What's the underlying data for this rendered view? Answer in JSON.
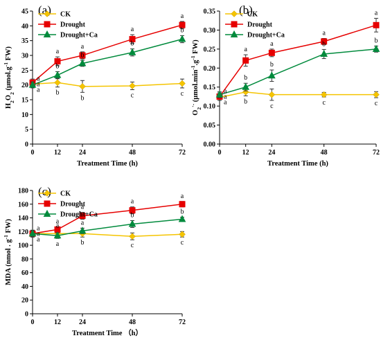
{
  "chart_data": [
    {
      "panel_label": "(a)",
      "type": "line",
      "x": [
        0,
        12,
        24,
        48,
        72
      ],
      "ylim": [
        0,
        45
      ],
      "yticks": [
        0,
        5,
        10,
        15,
        20,
        25,
        30,
        35,
        40,
        45
      ],
      "xlabel": "Treatment Time (h)",
      "ylabel": "H2O2 (μmol.g-1 FW)",
      "ylabel_parts": {
        "pre": "H",
        "sub1": "2",
        "mid": "O",
        "sub2": "2",
        "post": " (μmol.g",
        "sup": "-1",
        "end": " FW)"
      },
      "legend": {
        "position": "top-left"
      },
      "series": [
        {
          "name": "CK",
          "color": "#f5c400",
          "marker": "diamond",
          "values": [
            20.3,
            20.8,
            19.5,
            19.7,
            20.5
          ],
          "errors": [
            1.2,
            1.5,
            2.0,
            1.3,
            1.5
          ],
          "labels": [
            "a",
            "b",
            "b",
            "c",
            "c"
          ]
        },
        {
          "name": "Drought",
          "color": "#e60000",
          "marker": "square",
          "values": [
            20.8,
            28.0,
            30.0,
            35.5,
            40.3
          ],
          "errors": [
            1.2,
            1.5,
            1.2,
            1.5,
            1.2
          ],
          "labels": [
            "a",
            "a",
            "a",
            "a",
            "a"
          ]
        },
        {
          "name": "Drought+Ca",
          "color": "#008a3c",
          "marker": "triangle",
          "values": [
            20.0,
            23.3,
            27.3,
            31.0,
            35.5
          ],
          "errors": [
            1.0,
            1.2,
            1.0,
            1.2,
            1.2
          ],
          "labels": [
            "a",
            "b",
            "b",
            "b",
            "b"
          ]
        }
      ]
    },
    {
      "panel_label": "(b)",
      "type": "line",
      "x": [
        0,
        12,
        24,
        48,
        72
      ],
      "ylim": [
        0,
        0.35
      ],
      "yticks": [
        "0.00",
        "0.05",
        "0.10",
        "0.15",
        "0.20",
        "0.25",
        "0.30",
        "0.35"
      ],
      "xlabel": "Treatment Time (h)",
      "ylabel": "O2·- (μmol.min-1.g-1 FW)",
      "ylabel_parts": {
        "pre": "O",
        "sub1": "2",
        "sup0": "·-",
        "post": " (μmol.min",
        "sup1": "-1",
        "mid": ".g",
        "sup2": "-1",
        "end": " FW)"
      },
      "legend": {
        "position": "top-left"
      },
      "series": [
        {
          "name": "CK",
          "color": "#f5c400",
          "marker": "diamond",
          "values": [
            0.123,
            0.137,
            0.13,
            0.13,
            0.13
          ],
          "errors": [
            0.008,
            0.01,
            0.015,
            0.006,
            0.008
          ],
          "labels": [
            "a",
            "b",
            "c",
            "c",
            "c"
          ]
        },
        {
          "name": "Drought",
          "color": "#e60000",
          "marker": "square",
          "values": [
            0.125,
            0.22,
            0.24,
            0.27,
            0.313
          ],
          "errors": [
            0.01,
            0.015,
            0.01,
            0.008,
            0.018
          ],
          "labels": [
            "a",
            "a",
            "a",
            "a",
            "a"
          ]
        },
        {
          "name": "Drought+Ca",
          "color": "#008a3c",
          "marker": "triangle",
          "values": [
            0.13,
            0.15,
            0.18,
            0.237,
            0.25
          ],
          "errors": [
            0.008,
            0.01,
            0.015,
            0.012,
            0.008
          ],
          "labels": [
            "a",
            "b",
            "b",
            "b",
            "b"
          ]
        }
      ]
    },
    {
      "panel_label": "(c)",
      "type": "line",
      "x": [
        0,
        12,
        24,
        48,
        72
      ],
      "ylim": [
        0,
        180
      ],
      "yticks": [
        0,
        20,
        40,
        60,
        80,
        100,
        120,
        140,
        160,
        180
      ],
      "xlabel": "Treatment Time （h）",
      "ylabel": "MDA (nmol . g-1 FW)",
      "ylabel_parts": {
        "pre": "MDA (nmol . g",
        "sup": "-1",
        "end": " FW)"
      },
      "legend": {
        "position": "top-left"
      },
      "series": [
        {
          "name": "CK",
          "color": "#f5c400",
          "marker": "diamond",
          "values": [
            117,
            117,
            117,
            113,
            116
          ],
          "errors": [
            5,
            4,
            5,
            5,
            4
          ],
          "labels": [
            "a",
            "a",
            "b",
            "c",
            "c"
          ]
        },
        {
          "name": "Drought",
          "color": "#e60000",
          "marker": "square",
          "values": [
            117,
            123,
            143,
            151,
            160
          ],
          "errors": [
            5,
            4,
            5,
            5,
            4
          ],
          "labels": [
            "a",
            "a",
            "a",
            "a",
            "a"
          ]
        },
        {
          "name": "Drought+Ca",
          "color": "#008a3c",
          "marker": "triangle",
          "values": [
            117,
            114,
            121,
            131,
            138
          ],
          "errors": [
            4,
            4,
            4,
            5,
            3
          ],
          "labels": [
            "a",
            "a",
            "a",
            "b",
            "b"
          ]
        }
      ]
    }
  ]
}
